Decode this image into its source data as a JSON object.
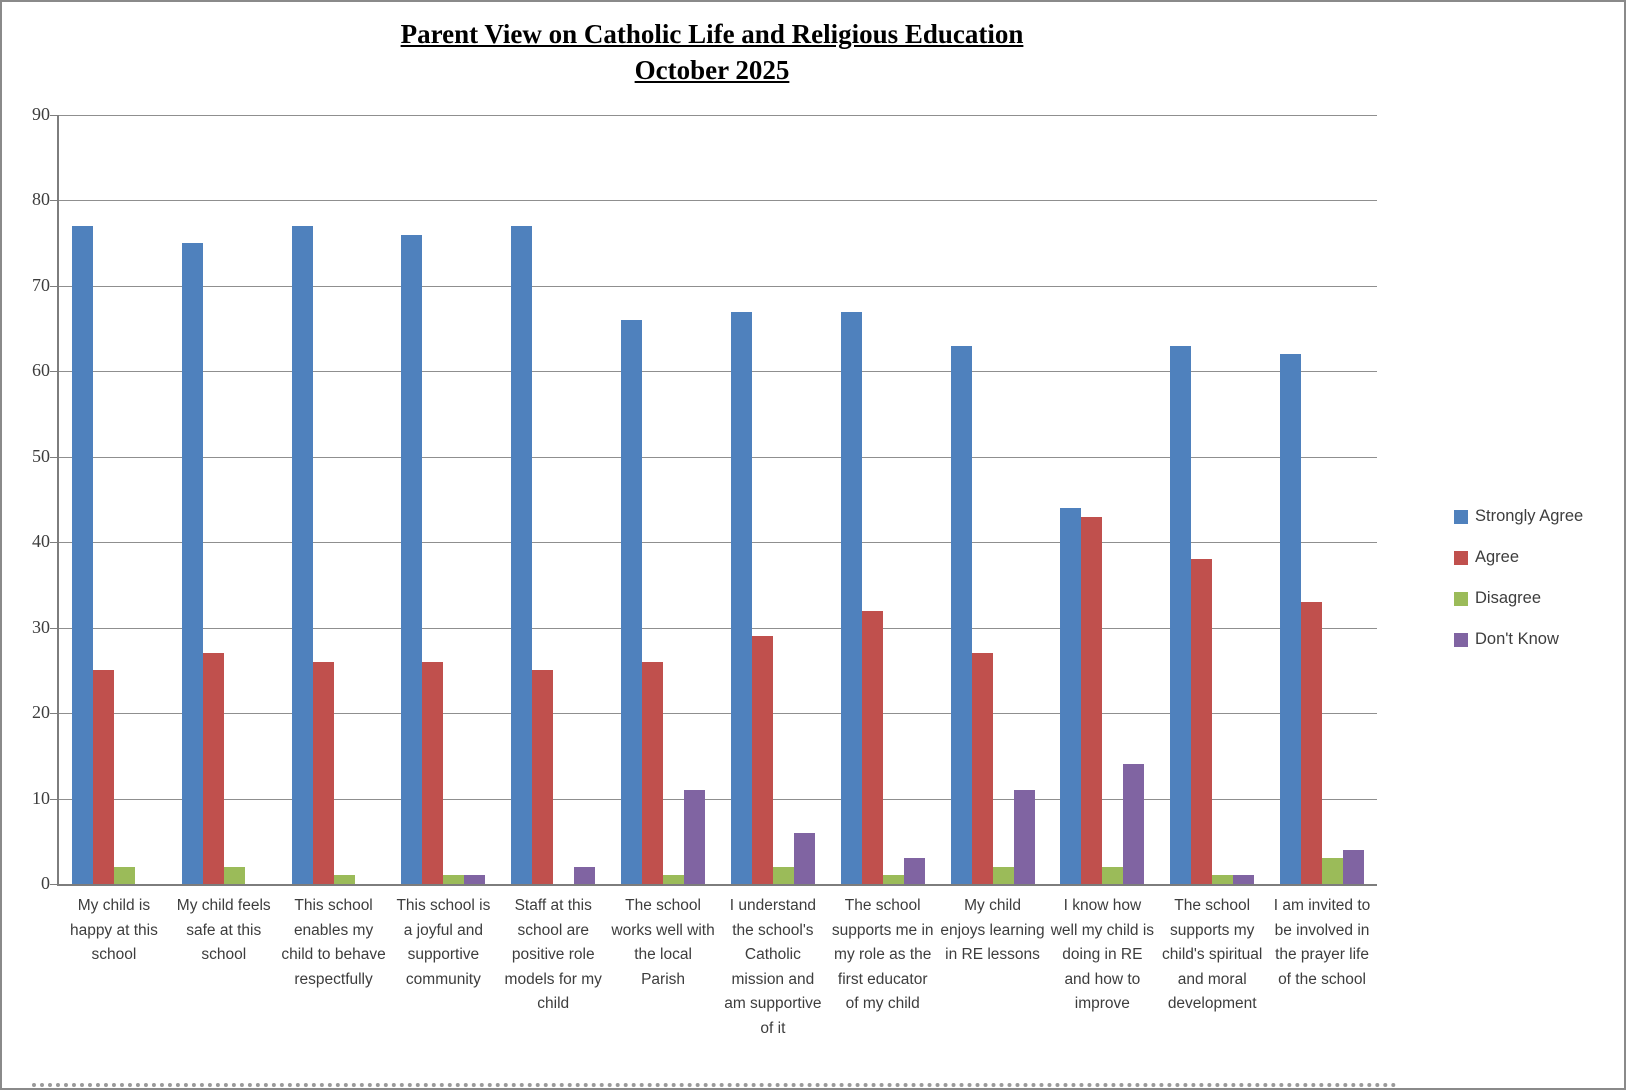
{
  "title": {
    "line1": "Parent View on Catholic Life and Religious Education",
    "line2": "October 2025"
  },
  "chart_data": {
    "type": "bar",
    "title": "Parent View on Catholic Life and Religious Education",
    "subtitle": "October 2025",
    "ylim": [
      0,
      90
    ],
    "ytick_interval": 10,
    "grid": true,
    "legend_position": "right",
    "categories": [
      "My child is happy at this school",
      "My child feels safe at this school",
      "This school enables my child to behave respectfully",
      "This school is a joyful and supportive community",
      "Staff at this school are positive role models for my child",
      "The school works well with the local Parish",
      "I understand the school's Catholic mission and am supportive of it",
      "The school supports me in my role as the first educator of my child",
      "My child enjoys learning in RE lessons",
      "I know how well my child is doing in RE and how to improve",
      "The school supports my child's spiritual and moral development",
      "I am invited to be involved in the prayer life of the school"
    ],
    "series": [
      {
        "name": "Strongly Agree",
        "color": "#4F81BD",
        "values": [
          77,
          75,
          77,
          76,
          77,
          66,
          67,
          67,
          63,
          44,
          63,
          62
        ]
      },
      {
        "name": "Agree",
        "color": "#C0504D",
        "values": [
          25,
          27,
          26,
          26,
          25,
          26,
          29,
          32,
          27,
          43,
          38,
          33
        ]
      },
      {
        "name": "Disagree",
        "color": "#9BBB59",
        "values": [
          2,
          2,
          1,
          1,
          0,
          1,
          2,
          1,
          2,
          2,
          1,
          3
        ]
      },
      {
        "name": "Don't Know",
        "color": "#8064A2",
        "values": [
          0,
          0,
          0,
          1,
          2,
          11,
          6,
          3,
          11,
          14,
          1,
          4
        ]
      }
    ]
  },
  "colors": {
    "gridline": "#8f8f8f",
    "axis": "#7d7d7d",
    "text": "#3d3d3d"
  }
}
